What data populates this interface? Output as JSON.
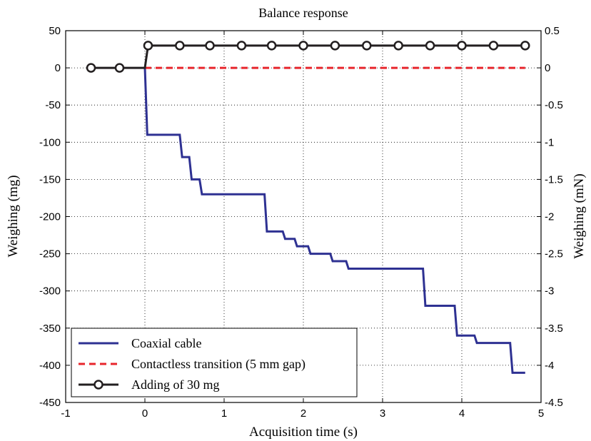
{
  "chart_data": {
    "type": "line",
    "title": "Balance response",
    "xlabel": "Acquisition time (s)",
    "ylabel": "Weighing (mg)",
    "ylabel_right": "Weighing (mN)",
    "xlim": [
      -1,
      5
    ],
    "ylim": [
      -450,
      50
    ],
    "ylim_right": [
      -4.5,
      0.5
    ],
    "x_ticks": [
      "-1",
      "0",
      "1",
      "2",
      "3",
      "4",
      "5"
    ],
    "y_ticks": [
      "50",
      "0",
      "-50",
      "-100",
      "-150",
      "-200",
      "-250",
      "-300",
      "-350",
      "-400",
      "-450"
    ],
    "y_ticks_right": [
      "0.5",
      "0",
      "-0.5",
      "-1",
      "-1.5",
      "-2",
      "-2.5",
      "-3",
      "-3.5",
      "-4",
      "-4.5"
    ],
    "grid": true,
    "legend_position": "bottom-left",
    "series": [
      {
        "name": "Coaxial cable",
        "color": "#2e3192",
        "style": "solid",
        "points": [
          [
            0.0,
            0
          ],
          [
            0.03,
            -90
          ],
          [
            0.44,
            -90
          ],
          [
            0.47,
            -120
          ],
          [
            0.56,
            -120
          ],
          [
            0.59,
            -150
          ],
          [
            0.69,
            -150
          ],
          [
            0.72,
            -170
          ],
          [
            1.51,
            -170
          ],
          [
            1.54,
            -220
          ],
          [
            1.74,
            -220
          ],
          [
            1.77,
            -230
          ],
          [
            1.89,
            -230
          ],
          [
            1.92,
            -240
          ],
          [
            2.06,
            -240
          ],
          [
            2.09,
            -250
          ],
          [
            2.34,
            -250
          ],
          [
            2.37,
            -260
          ],
          [
            2.54,
            -260
          ],
          [
            2.57,
            -270
          ],
          [
            3.51,
            -270
          ],
          [
            3.54,
            -320
          ],
          [
            3.91,
            -320
          ],
          [
            3.94,
            -360
          ],
          [
            4.16,
            -360
          ],
          [
            4.19,
            -370
          ],
          [
            4.61,
            -370
          ],
          [
            4.64,
            -410
          ],
          [
            4.8,
            -410
          ]
        ]
      },
      {
        "name": "Contactless transition (5 mm gap)",
        "color": "#e8262c",
        "style": "dashed",
        "points": [
          [
            0.0,
            0
          ],
          [
            4.8,
            0
          ]
        ]
      },
      {
        "name": "Adding of 30 mg",
        "color": "#231f20",
        "style": "solid-circle-markers",
        "points": [
          [
            -0.68,
            0
          ],
          [
            0.0,
            0
          ],
          [
            0.04,
            30
          ],
          [
            4.8,
            30
          ]
        ],
        "markers": [
          [
            -0.68,
            0
          ],
          [
            -0.32,
            0
          ],
          [
            0.04,
            30
          ],
          [
            0.44,
            30
          ],
          [
            0.82,
            30
          ],
          [
            1.22,
            30
          ],
          [
            1.6,
            30
          ],
          [
            2.0,
            30
          ],
          [
            2.4,
            30
          ],
          [
            2.8,
            30
          ],
          [
            3.2,
            30
          ],
          [
            3.6,
            30
          ],
          [
            4.0,
            30
          ],
          [
            4.4,
            30
          ],
          [
            4.8,
            30
          ]
        ]
      }
    ]
  }
}
